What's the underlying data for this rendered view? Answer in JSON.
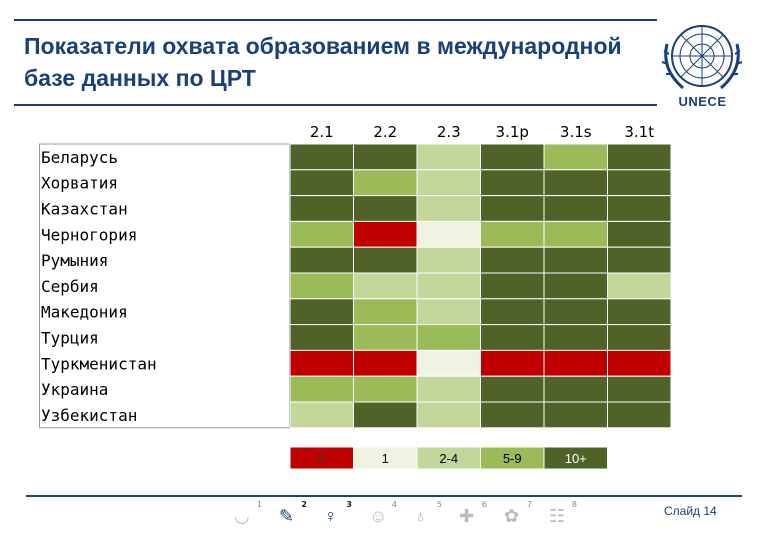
{
  "slide": {
    "title": "Показатели охвата образованием в международной базе данных по ЦРТ",
    "logo_label": "UNECE",
    "slide_number": "Слайд 14"
  },
  "colors": {
    "title": "#1a3f7a",
    "level_0": "#c00000",
    "level_1": "#eef3e2",
    "level_2_4": "#c4d79b",
    "level_5_9": "#9bbb59",
    "level_10_plus": "#4f6228"
  },
  "mdg_goals": [
    {
      "num": "1",
      "icon": "bowl-icon"
    },
    {
      "num": "2",
      "icon": "pencil-icon"
    },
    {
      "num": "3",
      "icon": "gender-icon"
    },
    {
      "num": "4",
      "icon": "child-icon"
    },
    {
      "num": "5",
      "icon": "mother-icon"
    },
    {
      "num": "6",
      "icon": "medicine-icon"
    },
    {
      "num": "7",
      "icon": "plant-icon"
    },
    {
      "num": "8",
      "icon": "people-icon"
    }
  ],
  "chart_data": {
    "type": "heatmap",
    "columns": [
      "2.1",
      "2.2",
      "2.3",
      "3.1p",
      "3.1s",
      "3.1t"
    ],
    "rows": [
      "Беларусь",
      "Хорватия",
      "Казахстан",
      "Черногория",
      "Румыния",
      "Сербия",
      "Македония",
      "Турция",
      "Туркменистан",
      "Украина",
      "Узбекистан"
    ],
    "legend": {
      "labels": [
        "0",
        "1",
        "2-4",
        "5-9",
        "10+"
      ],
      "colors": [
        "#c00000",
        "#eef3e2",
        "#c4d79b",
        "#9bbb59",
        "#4f6228"
      ]
    },
    "values": [
      [
        4,
        4,
        2,
        4,
        3,
        4
      ],
      [
        4,
        3,
        2,
        4,
        4,
        4
      ],
      [
        4,
        4,
        2,
        4,
        4,
        4
      ],
      [
        3,
        0,
        1,
        3,
        3,
        4
      ],
      [
        4,
        4,
        2,
        4,
        4,
        4
      ],
      [
        3,
        2,
        2,
        4,
        4,
        2
      ],
      [
        4,
        3,
        2,
        4,
        4,
        4
      ],
      [
        4,
        3,
        3,
        4,
        4,
        4
      ],
      [
        0,
        0,
        1,
        0,
        0,
        0
      ],
      [
        3,
        3,
        2,
        4,
        4,
        4
      ],
      [
        2,
        4,
        2,
        4,
        4,
        4
      ]
    ]
  }
}
